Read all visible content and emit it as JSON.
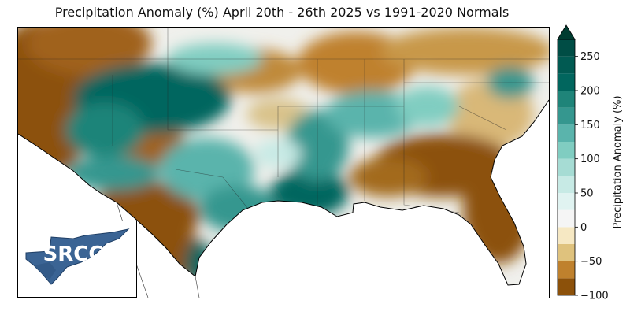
{
  "title": "Precipitation Anomaly (%) April 20th - 26th 2025 vs 1991-2020 Normals",
  "logo": {
    "text": "SRCC"
  },
  "colorbar": {
    "label": "Precipitation Anomaly (%)",
    "min": -100,
    "max": 275,
    "extend": "max",
    "ticks": [
      -100,
      -50,
      0,
      50,
      100,
      150,
      200,
      250
    ],
    "tick_labels": [
      "−100",
      "−50",
      "0",
      "50",
      "100",
      "150",
      "200",
      "250"
    ],
    "levels": [
      {
        "from": -100,
        "to": -75,
        "color": "#8c510a"
      },
      {
        "from": -75,
        "to": -50,
        "color": "#bf812d"
      },
      {
        "from": -50,
        "to": -25,
        "color": "#dfc27d"
      },
      {
        "from": -25,
        "to": 0,
        "color": "#f6e8c3"
      },
      {
        "from": 0,
        "to": 25,
        "color": "#f5f5f5"
      },
      {
        "from": 25,
        "to": 50,
        "color": "#e0f3f1"
      },
      {
        "from": 50,
        "to": 75,
        "color": "#c7eae5"
      },
      {
        "from": 75,
        "to": 100,
        "color": "#a6dcd4"
      },
      {
        "from": 100,
        "to": 125,
        "color": "#80cdc1"
      },
      {
        "from": 125,
        "to": 150,
        "color": "#5ab4ac"
      },
      {
        "from": 150,
        "to": 175,
        "color": "#35978f"
      },
      {
        "from": 175,
        "to": 200,
        "color": "#1f8479"
      },
      {
        "from": 200,
        "to": 225,
        "color": "#01665e"
      },
      {
        "from": 225,
        "to": 250,
        "color": "#015a52"
      },
      {
        "from": 250,
        "to": 275,
        "color": "#004d45"
      }
    ],
    "extend_color": "#003c30"
  },
  "colors": {
    "dry": "#8c510a",
    "dry_mid": "#bf812d",
    "near_normal": "#f5f5f5",
    "wet": "#5ab4ac",
    "very_wet": "#01665e",
    "logo_blue": "#3b6494",
    "logo_dark": "#1f3f66"
  }
}
